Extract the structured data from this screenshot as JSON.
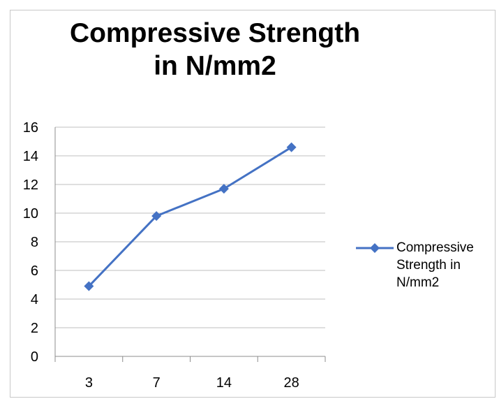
{
  "chart_data": {
    "type": "line",
    "title": "Compressive Strength in N/mm2",
    "categories": [
      "3",
      "7",
      "14",
      "28"
    ],
    "series": [
      {
        "name": "Compressive Strength in N/mm2",
        "values": [
          4.9,
          9.8,
          11.7,
          14.6
        ],
        "color": "#4472C4"
      }
    ],
    "ylim": [
      0,
      16
    ],
    "yticks": [
      "0",
      "2",
      "4",
      "6",
      "8",
      "10",
      "12",
      "14",
      "16"
    ],
    "grid": true,
    "legend_position": "right",
    "marker": "diamond"
  }
}
